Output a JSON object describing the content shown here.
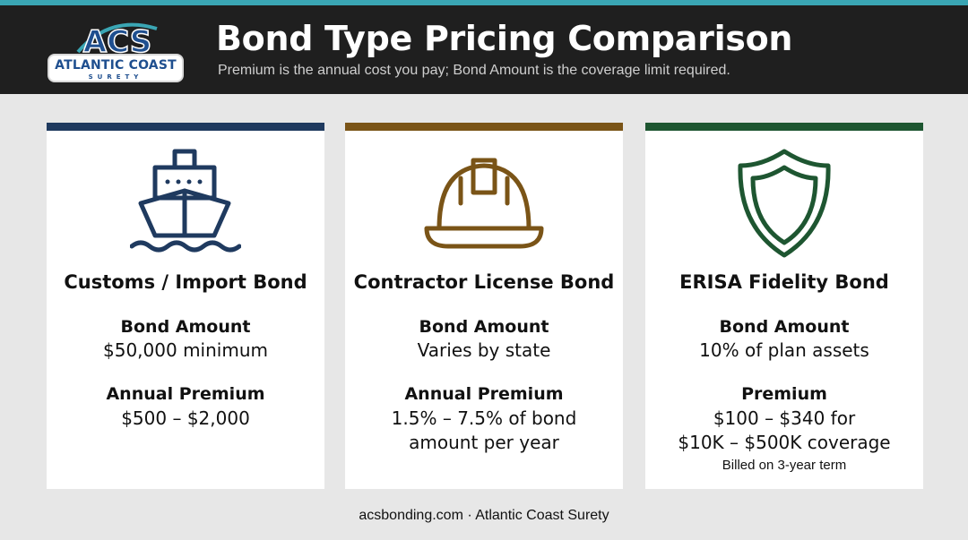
{
  "header": {
    "title": "Bond Type Pricing Comparison",
    "subtitle": "Premium is the annual cost you pay; Bond Amount is the coverage limit required.",
    "logo": {
      "mark": "ACS",
      "line1": "ATLANTIC COAST",
      "line2": "SURETY"
    }
  },
  "colors": {
    "accent_teal": "#3aa6b4",
    "header_bg": "#1f1f1f",
    "customs": "#1f3a5f",
    "contractor": "#7a5417",
    "erisa": "#1e5631"
  },
  "cards": [
    {
      "icon": "ship-icon",
      "title": "Customs / Import Bond",
      "amount_label": "Bond Amount",
      "amount_value": "$50,000 minimum",
      "premium_label": "Annual Premium",
      "premium_value_1": "$500 – $2,000"
    },
    {
      "icon": "hard-hat-icon",
      "title": "Contractor License Bond",
      "amount_label": "Bond Amount",
      "amount_value": "Varies by state",
      "premium_label": "Annual Premium",
      "premium_value_1": "1.5% – 7.5% of bond",
      "premium_value_2": "amount per year"
    },
    {
      "icon": "shield-icon",
      "title": "ERISA Fidelity Bond",
      "amount_label": "Bond Amount",
      "amount_value": "10% of plan assets",
      "premium_label": "Premium",
      "premium_value_1": "$100 – $340 for",
      "premium_value_2": "$10K – $500K coverage",
      "note": "Billed on 3-year term"
    }
  ],
  "footer": {
    "text": "acsbonding.com · Atlantic Coast Surety"
  }
}
